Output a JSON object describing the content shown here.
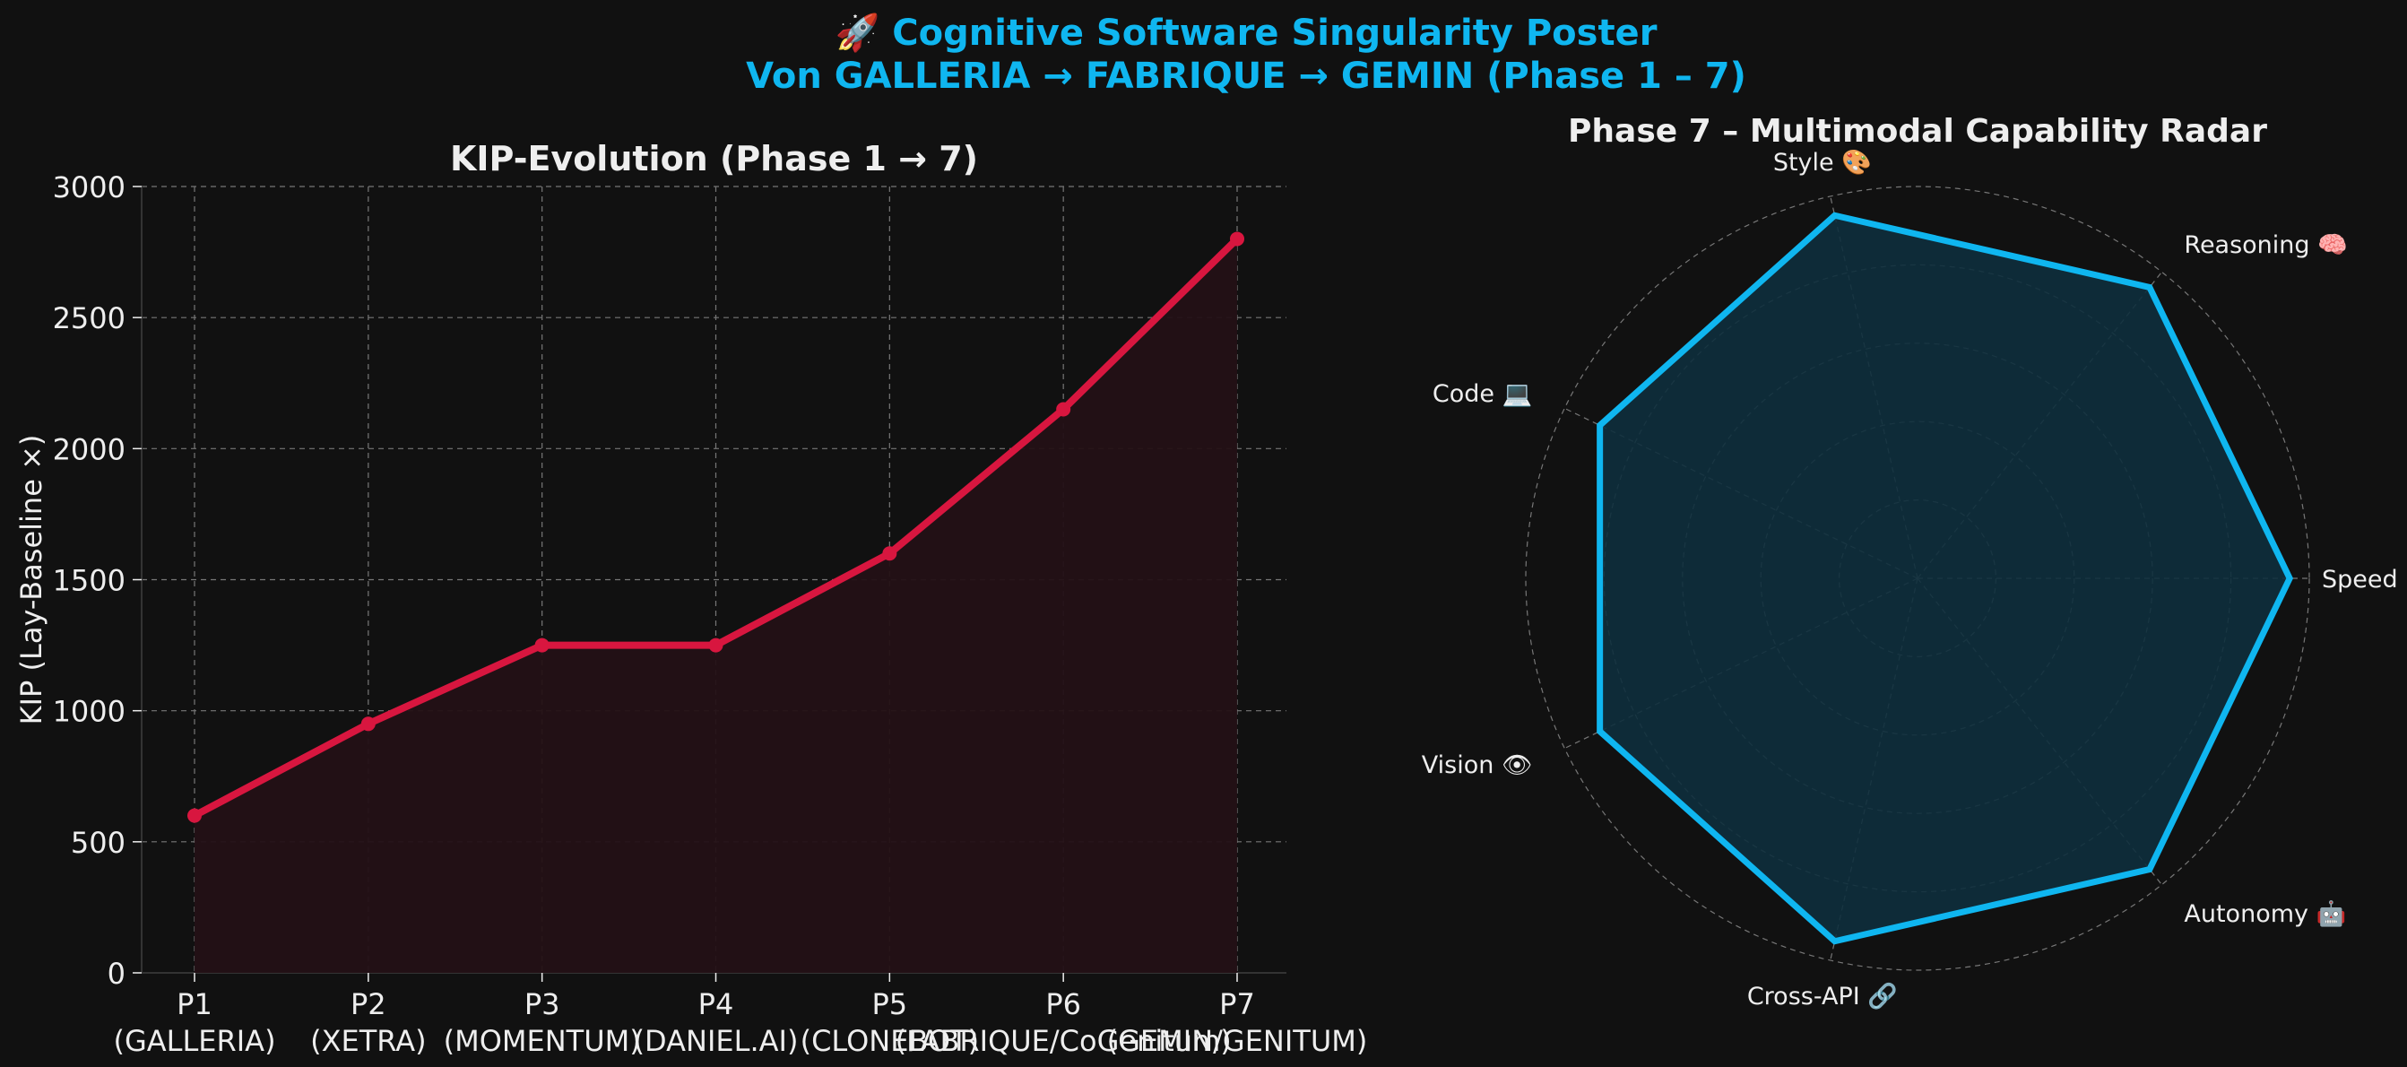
{
  "poster": {
    "title_line1": "🚀 Cognitive Software Singularity Poster",
    "title_line2": "Von GALLERIA → FABRIQUE → GEMIN (Phase 1 – 7)"
  },
  "colors": {
    "background": "#111111",
    "title": "#0fb6f0",
    "line": "#d8163f",
    "line_fill": "#241116",
    "radar": "#0fb6f0",
    "radar_fill": "#0e2f3d",
    "grid": "#777777",
    "text": "#eeeeee"
  },
  "chart_data": [
    {
      "type": "line",
      "title": "KIP-Evolution (Phase 1 → 7)",
      "xlabel": "",
      "ylabel": "KIP (Lay-Baseline ×)",
      "categories": [
        "P1",
        "P2",
        "P3",
        "P4",
        "P5",
        "P6",
        "P7"
      ],
      "category_sublabels": [
        "(GALLERIA)",
        "(XETRA)",
        "(MOMENTUM)",
        "(DANIEL.AI)",
        "(CLONEBOT)",
        "(FABRIQUE/CoGenitum)",
        "(GEMIN/GENITUM)"
      ],
      "values": [
        600,
        950,
        1250,
        1250,
        1600,
        2150,
        2800
      ],
      "ylim": [
        0,
        3000
      ],
      "yticks": [
        0,
        500,
        1000,
        1500,
        2000,
        2500,
        3000
      ],
      "grid": true,
      "filled": true
    },
    {
      "type": "radar",
      "title": "Phase 7 – Multimodal Capability Radar",
      "axes": [
        "Speed ⚡",
        "Reasoning 🧠",
        "Style 🎨",
        "Code 💻",
        "Vision 👁",
        "Cross-API 🔗",
        "Autonomy 🤖"
      ],
      "values": [
        9.5,
        9.5,
        9.5,
        9.0,
        9.0,
        9.5,
        9.5
      ],
      "rmax": 10,
      "rings": [
        2,
        4,
        6,
        8,
        10
      ],
      "grid": true
    }
  ]
}
